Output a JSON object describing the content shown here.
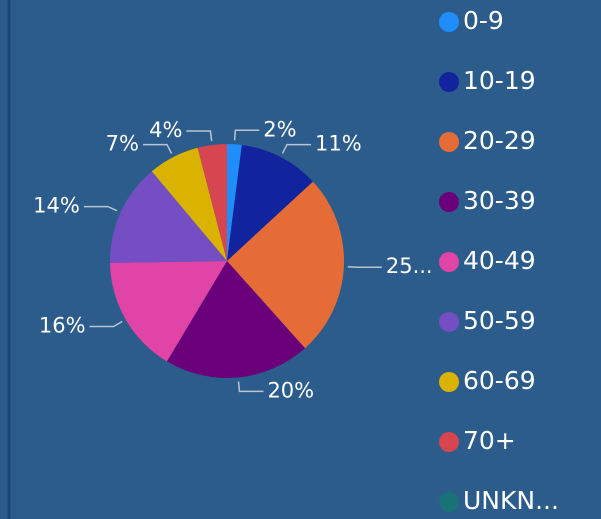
{
  "chart_data": {
    "type": "pie",
    "categories": [
      "0-9",
      "10-19",
      "20-29",
      "30-39",
      "40-49",
      "50-59",
      "60-69",
      "70+",
      "UNKN..."
    ],
    "values": [
      2,
      11,
      25,
      20,
      16,
      14,
      7,
      4,
      0
    ],
    "value_labels": [
      "2%",
      "11%",
      "25...",
      "20%",
      "16%",
      "14%",
      "7%",
      "4%",
      null
    ],
    "colors": [
      "#1f8efa",
      "#12239e",
      "#e66c37",
      "#6b007b",
      "#e044a7",
      "#744ec2",
      "#d9b300",
      "#d64550",
      "#197278"
    ]
  }
}
